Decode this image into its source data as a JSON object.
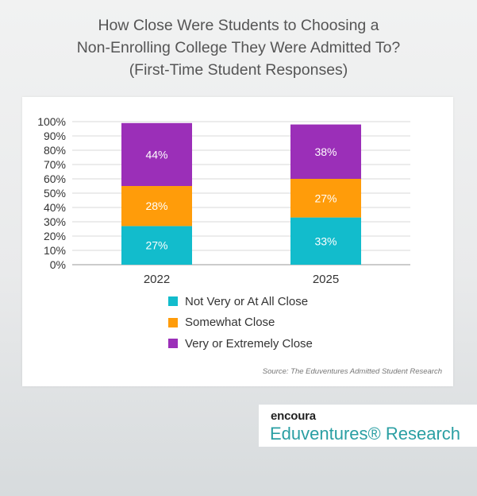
{
  "title_lines": [
    "How Close Were Students to Choosing a",
    "Non-Enrolling College They Were Admitted To?",
    "(First-Time Student Responses)"
  ],
  "source": "Source: The Eduventures Admitted Student Research",
  "brand": {
    "logo_text": "encoura",
    "name": "Eduventures® Research"
  },
  "colors": {
    "teal": "#12bccc",
    "orange": "#ff9c0a",
    "purple": "#9b2fb8"
  },
  "chart_data": {
    "type": "bar",
    "stacked": true,
    "categories": [
      "2022",
      "2025"
    ],
    "series": [
      {
        "name": "Not Very or At All Close",
        "values": [
          27,
          33
        ],
        "labels": [
          "27%",
          "33%"
        ],
        "color": "#12bccc"
      },
      {
        "name": "Somewhat Close",
        "values": [
          28,
          27
        ],
        "labels": [
          "28%",
          "27%"
        ],
        "color": "#ff9c0a"
      },
      {
        "name": "Very or Extremely Close",
        "values": [
          44,
          38
        ],
        "labels": [
          "44%",
          "38%"
        ],
        "color": "#9b2fb8"
      }
    ],
    "ylim": [
      0,
      100
    ],
    "yticks": [
      "0%",
      "10%",
      "20%",
      "30%",
      "40%",
      "50%",
      "60%",
      "70%",
      "80%",
      "90%",
      "100%"
    ],
    "grid": true,
    "legend_position": "bottom"
  }
}
